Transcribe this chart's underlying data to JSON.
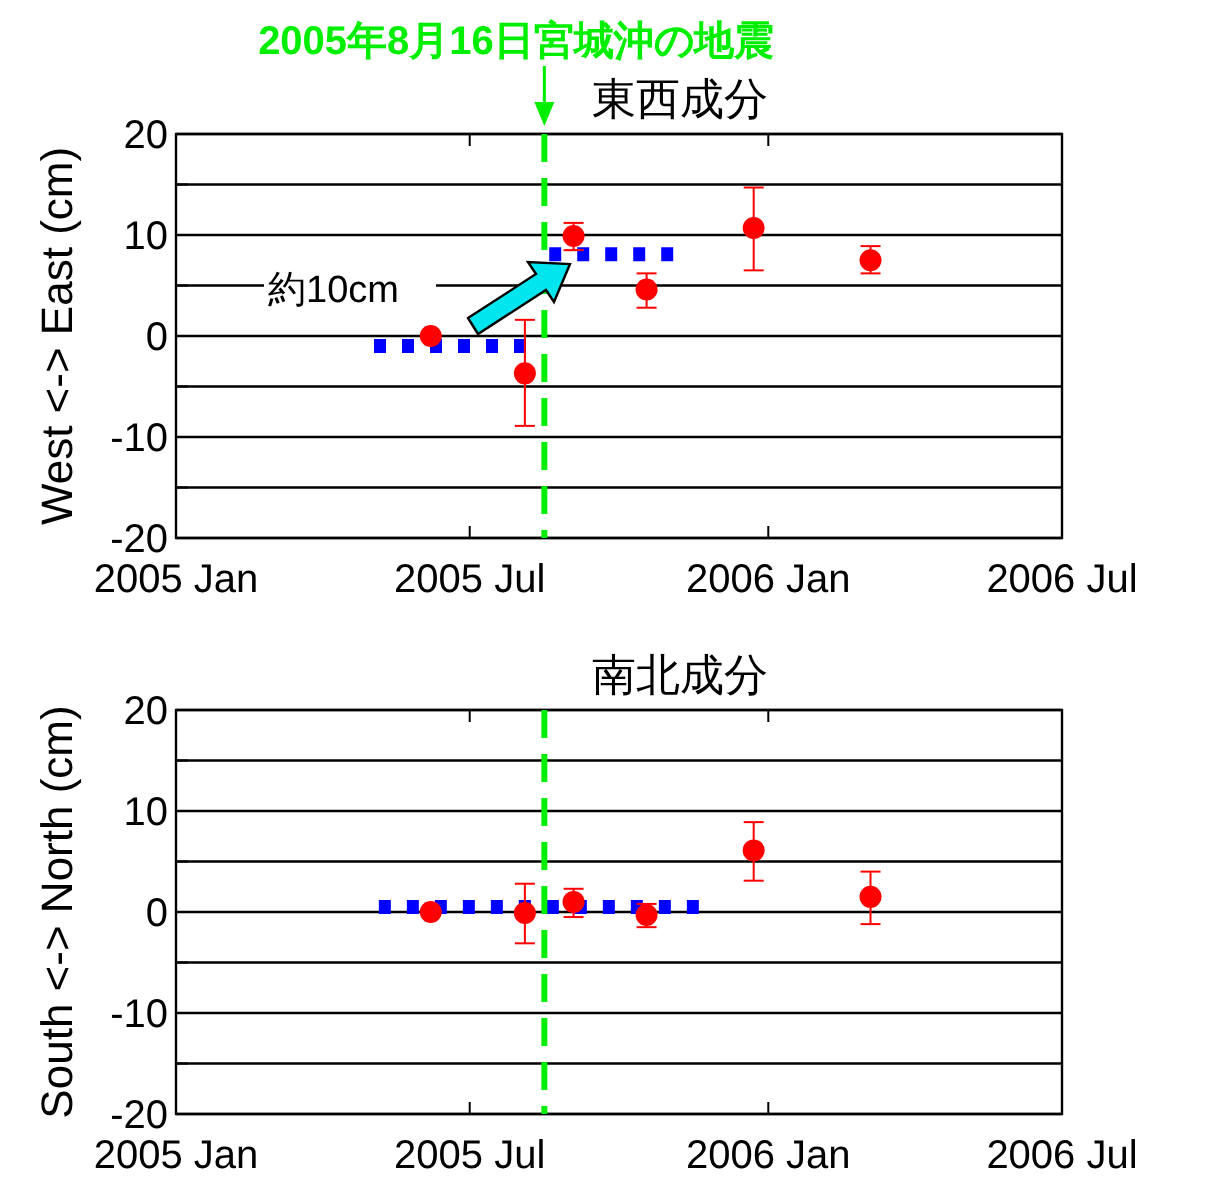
{
  "chart_data": [
    {
      "type": "scatter",
      "title": "東西成分",
      "ylabel": "West <-> East (cm)",
      "xlim": [
        "2005-01-01",
        "2006-07-01"
      ],
      "xticks": [
        {
          "value": "2005-01-01",
          "label": "2005 Jan"
        },
        {
          "value": "2005-07-01",
          "label": "2005 Jul"
        },
        {
          "value": "2006-01-01",
          "label": "2006 Jan"
        },
        {
          "value": "2006-07-01",
          "label": "2006 Jul"
        }
      ],
      "ylim": [
        -20,
        20
      ],
      "yticks": [
        -20,
        {
          "value": -15,
          "label": null
        },
        -10,
        {
          "value": -5,
          "label": null
        },
        0,
        {
          "value": 5,
          "label": null
        },
        10,
        {
          "value": 15,
          "label": null
        },
        20
      ],
      "grid": "y",
      "series": [
        {
          "type": "line",
          "color": "#0000ff",
          "line_style": "dotted",
          "marker": "none",
          "x": [
            "2005-05-03",
            "2005-08-10"
          ],
          "values": [
            -1,
            -1
          ]
        },
        {
          "type": "line",
          "color": "#0000ff",
          "line_style": "dotted",
          "marker": "none",
          "x": [
            "2005-08-19",
            "2005-11-06"
          ],
          "values": [
            8.1,
            8.1
          ]
        },
        {
          "type": "scatter",
          "color": "#ff0000",
          "marker": "circle",
          "x": [
            "2005-06-07",
            "2005-08-04",
            "2005-09-03",
            "2005-10-18",
            "2005-12-23",
            "2006-03-05"
          ],
          "values": [
            0,
            -3.7,
            9.9,
            4.6,
            10.7,
            7.5
          ],
          "errors": [
            null,
            [
              -8.9,
              1.6
            ],
            [
              8.5,
              11.2
            ],
            [
              2.8,
              6.2
            ],
            [
              6.5,
              14.7
            ],
            [
              6.2,
              8.9
            ]
          ]
        }
      ],
      "ref_lines": [
        {
          "axis": "x",
          "value": "2005-08-16",
          "label": "2005年8月16日宮城沖の地震",
          "color": "#00ee00",
          "line_style": "dashed"
        }
      ],
      "annotations": [
        "約10cm"
      ]
    },
    {
      "type": "scatter",
      "title": "南北成分",
      "ylabel": "South <-> North (cm)",
      "xlim": [
        "2005-01-01",
        "2006-07-01"
      ],
      "xticks": [
        {
          "value": "2005-01-01",
          "label": "2005 Jan"
        },
        {
          "value": "2005-07-01",
          "label": "2005 Jul"
        },
        {
          "value": "2006-01-01",
          "label": "2006 Jan"
        },
        {
          "value": "2006-07-01",
          "label": "2006 Jul"
        }
      ],
      "ylim": [
        -20,
        20
      ],
      "yticks": [
        -20,
        {
          "value": -15,
          "label": null
        },
        -10,
        {
          "value": -5,
          "label": null
        },
        0,
        {
          "value": 5,
          "label": null
        },
        10,
        {
          "value": 15,
          "label": null
        },
        20
      ],
      "grid": "y",
      "series": [
        {
          "type": "line",
          "color": "#0000ff",
          "line_style": "dotted",
          "marker": "none",
          "x": [
            "2005-05-06",
            "2005-11-23"
          ],
          "values": [
            0.5,
            0.5
          ]
        },
        {
          "type": "scatter",
          "color": "#ff0000",
          "marker": "circle",
          "x": [
            "2005-06-07",
            "2005-08-04",
            "2005-09-03",
            "2005-10-18",
            "2005-12-23",
            "2006-03-05"
          ],
          "values": [
            0,
            -0.1,
            1.0,
            -0.3,
            6.1,
            1.5
          ],
          "errors": [
            null,
            [
              -3.1,
              2.8
            ],
            [
              -0.5,
              2.3
            ],
            [
              -1.5,
              0.8
            ],
            [
              3.1,
              8.9
            ],
            [
              -1.2,
              4.0
            ]
          ]
        }
      ],
      "ref_lines": [
        {
          "axis": "x",
          "value": "2005-08-16",
          "label": null,
          "color": "#00ee00",
          "line_style": "dashed"
        }
      ]
    }
  ]
}
